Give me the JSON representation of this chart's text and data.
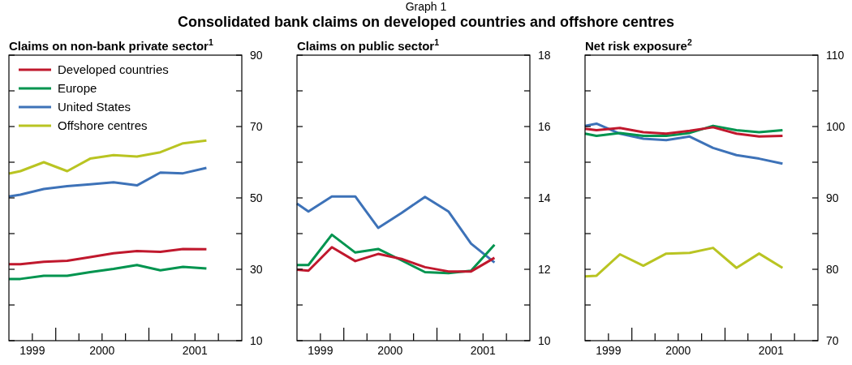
{
  "chart_data": [
    {
      "type": "line",
      "title": "Claims on non-bank private sector$^{1}$",
      "annotations": [
        "Graph 1",
        "Consolidated bank claims on developed countries and offshore centres"
      ],
      "legend": "top left",
      "x": [
        "1999-07-01",
        "1999-08-15",
        "1999-11-15",
        "2000-02-15",
        "2000-05-15",
        "2000-08-15",
        "2000-11-15",
        "2001-02-15",
        "2001-05-15",
        "2001-08-15"
      ],
      "xlim": [
        "1999-07-01",
        "2002-01-01"
      ],
      "xticks": [
        {
          "value": "1999-10-01",
          "label": "1999"
        },
        {
          "value": "2000-01-01",
          "label": null
        },
        {
          "value": "2000-04-01",
          "label": null
        },
        {
          "value": "2000-07-01",
          "label": "2000"
        },
        {
          "value": "2000-10-01",
          "label": null
        },
        {
          "value": "2001-01-01",
          "label": null
        },
        {
          "value": "2001-04-01",
          "label": null
        },
        {
          "value": "2001-07-01",
          "label": "2001"
        },
        {
          "value": "2001-10-01",
          "label": null
        }
      ],
      "ylim": [
        10,
        90
      ],
      "yticks": [
        10,
        {
          "value": 20,
          "label": null
        },
        30,
        {
          "value": 40,
          "label": null
        },
        50,
        {
          "value": 60,
          "label": null
        },
        70,
        {
          "value": 80,
          "label": null
        },
        90
      ],
      "series": [
        {
          "name": "Developed countries",
          "color": "#c0182d",
          "values": [
            31.4,
            31.4,
            32.1,
            32.4,
            33.4,
            34.5,
            35.1,
            34.9,
            35.7,
            35.6
          ]
        },
        {
          "name": "Europe",
          "color": "#00944f",
          "values": [
            27.3,
            27.3,
            28.2,
            28.2,
            29.2,
            30.1,
            31.2,
            29.7,
            30.7,
            30.2
          ]
        },
        {
          "name": "United States",
          "color": "#3d72b8",
          "values": [
            50.4,
            50.9,
            52.5,
            53.3,
            53.8,
            54.4,
            53.5,
            57.1,
            56.9,
            58.4
          ]
        },
        {
          "name": "Offshore centres",
          "color": "#b9c422",
          "values": [
            56.8,
            57.5,
            60.0,
            57.5,
            61.0,
            62.0,
            61.6,
            62.8,
            65.3,
            66.1
          ]
        }
      ]
    },
    {
      "type": "line",
      "title": "Claims on public sector$^{1}$",
      "x": [
        "1999-07-01",
        "1999-08-15",
        "1999-11-15",
        "2000-02-15",
        "2000-05-15",
        "2000-08-15",
        "2000-11-15",
        "2001-02-15",
        "2001-05-15",
        "2001-08-15"
      ],
      "xlim": [
        "1999-07-01",
        "2002-01-01"
      ],
      "xticks": [
        {
          "value": "1999-10-01",
          "label": "1999"
        },
        {
          "value": "2000-01-01",
          "label": null
        },
        {
          "value": "2000-04-01",
          "label": null
        },
        {
          "value": "2000-07-01",
          "label": "2000"
        },
        {
          "value": "2000-10-01",
          "label": null
        },
        {
          "value": "2001-01-01",
          "label": null
        },
        {
          "value": "2001-04-01",
          "label": null
        },
        {
          "value": "2001-07-01",
          "label": "2001"
        },
        {
          "value": "2001-10-01",
          "label": null
        }
      ],
      "ylim": [
        10,
        18
      ],
      "yticks": [
        10,
        {
          "value": 11,
          "label": null
        },
        12,
        {
          "value": 13,
          "label": null
        },
        14,
        {
          "value": 15,
          "label": null
        },
        16,
        {
          "value": 17,
          "label": null
        },
        18
      ],
      "series": [
        {
          "color": "#3d72b8",
          "values": [
            13.84,
            13.62,
            14.04,
            14.04,
            13.16,
            13.58,
            14.03,
            13.62,
            12.72,
            12.19
          ]
        },
        {
          "color": "#00944f",
          "values": [
            12.12,
            12.12,
            12.97,
            12.47,
            12.57,
            12.25,
            11.92,
            11.89,
            11.96,
            12.69
          ]
        },
        {
          "color": "#c0182d",
          "values": [
            11.99,
            11.96,
            12.62,
            12.23,
            12.43,
            12.29,
            12.06,
            11.94,
            11.94,
            12.32
          ]
        }
      ]
    },
    {
      "type": "line",
      "title": "Net risk exposure$^{2}$",
      "x": [
        "1999-07-01",
        "1999-08-15",
        "1999-11-15",
        "2000-02-15",
        "2000-05-15",
        "2000-08-15",
        "2000-11-15",
        "2001-02-15",
        "2001-05-15",
        "2001-08-15"
      ],
      "xlim": [
        "1999-07-01",
        "2002-01-01"
      ],
      "xticks": [
        {
          "value": "1999-10-01",
          "label": "1999"
        },
        {
          "value": "2000-01-01",
          "label": null
        },
        {
          "value": "2000-04-01",
          "label": null
        },
        {
          "value": "2000-07-01",
          "label": "2000"
        },
        {
          "value": "2000-10-01",
          "label": null
        },
        {
          "value": "2001-01-01",
          "label": null
        },
        {
          "value": "2001-04-01",
          "label": null
        },
        {
          "value": "2001-07-01",
          "label": "2001"
        },
        {
          "value": "2001-10-01",
          "label": null
        }
      ],
      "ylim": [
        70,
        110
      ],
      "yticks": [
        70,
        {
          "value": 75,
          "label": null
        },
        80,
        {
          "value": 85,
          "label": null
        },
        90,
        {
          "value": 95,
          "label": null
        },
        100,
        {
          "value": 105,
          "label": null
        },
        110
      ],
      "series": [
        {
          "color": "#b9c422",
          "values": [
            79.0,
            79.1,
            82.1,
            80.5,
            82.2,
            82.3,
            83.0,
            80.2,
            82.2,
            80.2
          ]
        },
        {
          "color": "#3d72b8",
          "values": [
            100.1,
            100.4,
            99.0,
            98.3,
            98.1,
            98.6,
            97.0,
            96.0,
            95.5,
            94.8
          ]
        },
        {
          "color": "#00944f",
          "values": [
            99.0,
            98.7,
            99.1,
            98.7,
            98.7,
            99.1,
            100.1,
            99.5,
            99.2,
            99.5
          ]
        },
        {
          "color": "#c0182d",
          "values": [
            99.7,
            99.5,
            99.8,
            99.2,
            99.0,
            99.4,
            99.9,
            99.0,
            98.6,
            98.7
          ]
        }
      ]
    }
  ]
}
